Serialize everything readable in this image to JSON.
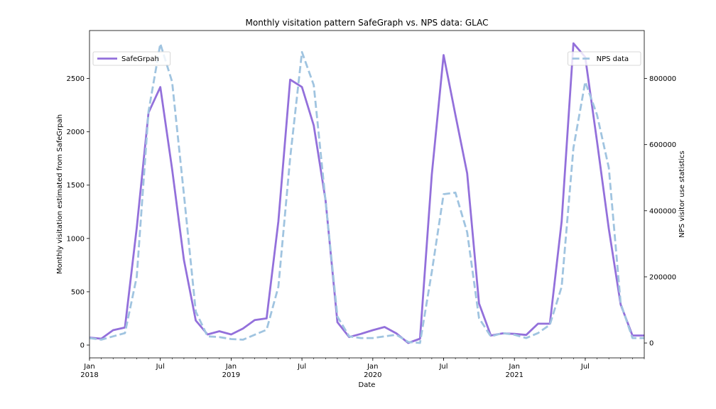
{
  "chart_data": {
    "type": "line",
    "title": "Monthly visitation pattern SafeGraph vs. NPS data: GLAC",
    "xlabel": "Date",
    "ylabel_left": "Monthly visitation estimated from SafeGrpah",
    "ylabel_right": "NPS visitor use statistics",
    "x": [
      "2018-01",
      "2018-02",
      "2018-03",
      "2018-04",
      "2018-05",
      "2018-06",
      "2018-07",
      "2018-08",
      "2018-09",
      "2018-10",
      "2018-11",
      "2018-12",
      "2019-01",
      "2019-02",
      "2019-03",
      "2019-04",
      "2019-05",
      "2019-06",
      "2019-07",
      "2019-08",
      "2019-09",
      "2019-10",
      "2019-11",
      "2019-12",
      "2020-01",
      "2020-02",
      "2020-03",
      "2020-04",
      "2020-05",
      "2020-06",
      "2020-07",
      "2020-08",
      "2020-09",
      "2020-10",
      "2020-11",
      "2020-12",
      "2021-01",
      "2021-02",
      "2021-03",
      "2021-04",
      "2021-05",
      "2021-06",
      "2021-07",
      "2021-08",
      "2021-09",
      "2021-10",
      "2021-11",
      "2021-12"
    ],
    "x_ticks": [
      {
        "date": "2018-01",
        "label": "Jan",
        "year": "2018"
      },
      {
        "date": "2018-07",
        "label": "Jul",
        "year": ""
      },
      {
        "date": "2019-01",
        "label": "Jan",
        "year": "2019"
      },
      {
        "date": "2019-07",
        "label": "Jul",
        "year": ""
      },
      {
        "date": "2020-01",
        "label": "Jan",
        "year": "2020"
      },
      {
        "date": "2020-07",
        "label": "Jul",
        "year": ""
      },
      {
        "date": "2021-01",
        "label": "Jan",
        "year": "2021"
      },
      {
        "date": "2021-07",
        "label": "Jul",
        "year": ""
      }
    ],
    "xlim": [
      "2018-01",
      "2021-12"
    ],
    "ylim_left": [
      -120,
      2950
    ],
    "yticks_left": [
      0,
      500,
      1000,
      1500,
      2000,
      2500
    ],
    "ylim_right": [
      -45000,
      945000
    ],
    "yticks_right": [
      0,
      200000,
      400000,
      600000,
      800000
    ],
    "grid": false,
    "series": [
      {
        "name": "SafeGrpah",
        "axis": "left",
        "color": "#9370db",
        "style": "solid",
        "values": [
          70,
          60,
          140,
          165,
          1100,
          2180,
          2420,
          1650,
          800,
          230,
          100,
          130,
          100,
          155,
          235,
          250,
          1160,
          2490,
          2420,
          2060,
          1360,
          215,
          75,
          105,
          140,
          170,
          110,
          20,
          60,
          1600,
          2720,
          2160,
          1610,
          390,
          90,
          110,
          105,
          95,
          200,
          200,
          1160,
          2830,
          2700,
          1910,
          1090,
          380,
          90,
          90
        ]
      },
      {
        "name": "NPS data",
        "axis": "right",
        "color": "#a0c4e0",
        "style": "dashed",
        "values": [
          15000,
          10000,
          20000,
          30000,
          200000,
          700000,
          905000,
          790000,
          450000,
          95000,
          20000,
          18000,
          12000,
          10000,
          25000,
          40000,
          170000,
          560000,
          880000,
          780000,
          430000,
          80000,
          20000,
          15000,
          15000,
          20000,
          25000,
          3000,
          0,
          215000,
          450000,
          455000,
          335000,
          75000,
          20000,
          30000,
          25000,
          15000,
          30000,
          55000,
          170000,
          590000,
          790000,
          690000,
          530000,
          120000,
          15000,
          15000
        ]
      }
    ],
    "legends": [
      {
        "series": "SafeGrpah",
        "placement": "upper-left"
      },
      {
        "series": "NPS data",
        "placement": "upper-right"
      }
    ]
  }
}
